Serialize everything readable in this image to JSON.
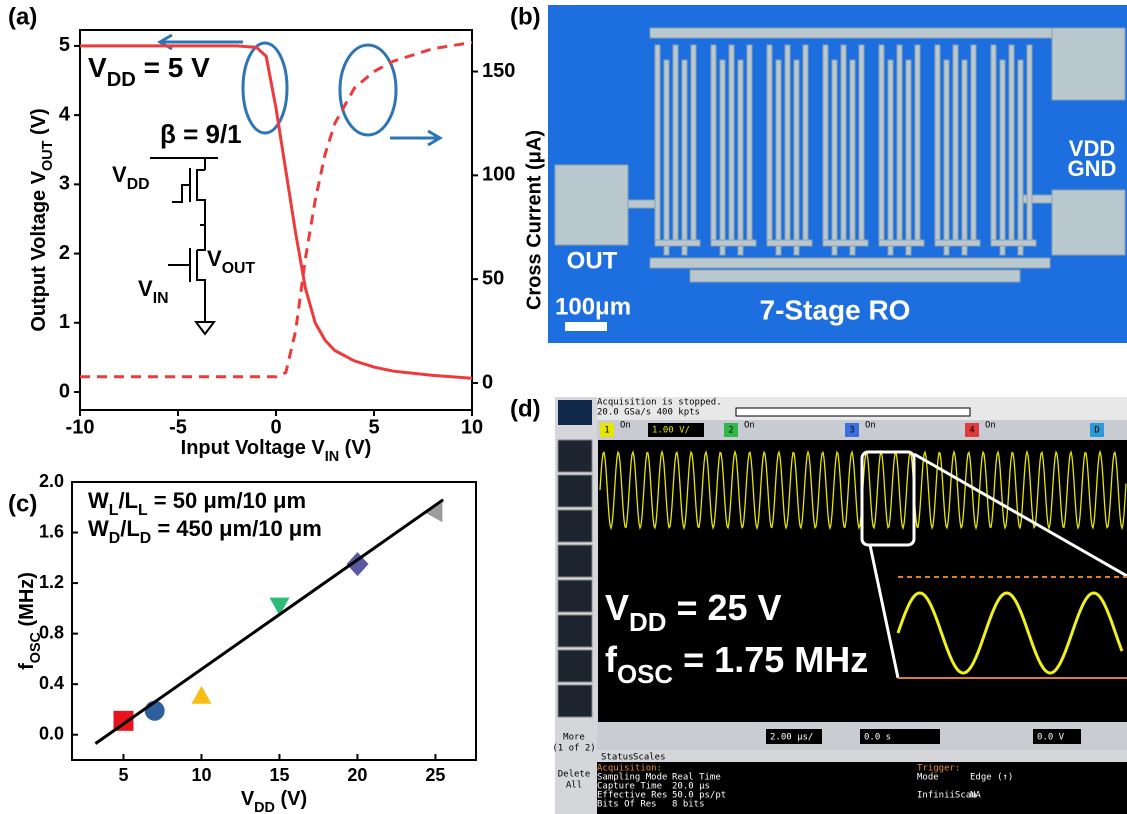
{
  "chart_data": [
    {
      "type": "line",
      "panel_label": "(a)",
      "xlabel": [
        "Input Voltage V",
        "IN",
        " (V)"
      ],
      "ylabel": [
        "Output Voltage V",
        "OUT",
        " (V)"
      ],
      "y2label": "Cross Current (μA)",
      "x": [
        -10,
        -8,
        -6,
        -4,
        -2,
        -1,
        -0.5,
        0,
        0.5,
        1,
        1.5,
        2,
        2.5,
        3,
        4,
        5,
        6,
        8,
        10
      ],
      "series": [
        {
          "color": "#ee3a3a",
          "style": "solid",
          "axis": "y",
          "values": [
            5,
            5,
            5,
            5,
            5,
            4.98,
            4.85,
            4.1,
            3.2,
            2.3,
            1.5,
            1.0,
            0.75,
            0.6,
            0.45,
            0.36,
            0.3,
            0.24,
            0.2
          ]
        },
        {
          "color": "#ee3a3a",
          "style": "dashed",
          "axis": "y2",
          "values": [
            3,
            3,
            3,
            3,
            3,
            3,
            3,
            3,
            5,
            25,
            60,
            88,
            110,
            125,
            142,
            150,
            155,
            161,
            164
          ]
        }
      ],
      "xlim": [
        -10,
        10
      ],
      "xticks": [
        -10,
        -5,
        0,
        5,
        10
      ],
      "ylim": [
        -0.26,
        5.23
      ],
      "yticks": [
        0,
        1,
        2,
        3,
        4,
        5
      ],
      "y2lim": [
        -13,
        170
      ],
      "y2ticks": [
        0,
        50,
        100,
        150
      ],
      "annotations": {
        "vdd": [
          "V",
          "DD",
          " = 5 V"
        ],
        "beta": "β = 9/1",
        "vdd_node": [
          "V",
          "DD"
        ],
        "vout_node": [
          "V",
          "OUT"
        ],
        "vin_node": [
          "V",
          "IN"
        ]
      }
    },
    {
      "type": "scatter",
      "panel_label": "(c)",
      "xlabel": [
        "V",
        "DD",
        " (V)"
      ],
      "ylabel": [
        "f",
        "OSC",
        " (MHz)"
      ],
      "series": [
        {
          "x": [
            5,
            7,
            10,
            15,
            20,
            25
          ],
          "values": [
            0.11,
            0.19,
            0.3,
            1.03,
            1.35,
            1.76
          ],
          "colors": [
            "#e8141c",
            "#2e5f9e",
            "#f7bd16",
            "#2dbb7a",
            "#5b57a0",
            "#9c9c9c"
          ],
          "markers": [
            "square",
            "circle",
            "triangle-up",
            "triangle-down",
            "diamond",
            "triangle-left"
          ]
        },
        {
          "x": [
            3.2,
            25.5
          ],
          "values": [
            -0.07,
            1.86
          ],
          "color": "#000000",
          "style": "line"
        }
      ],
      "xlim": [
        1.7,
        27.6
      ],
      "xticks": [
        5,
        10,
        15,
        20,
        25
      ],
      "ylim": [
        -0.2,
        2.0
      ],
      "yticks": [
        {
          "value": 0,
          "label": "0.0"
        },
        0.4,
        0.8,
        1.2,
        1.6,
        {
          "value": 2,
          "label": "2.0"
        }
      ],
      "annotations": {
        "line1": [
          "W",
          "L",
          "/L",
          "L",
          " = 50 μm/10 μm"
        ],
        "line2": [
          "W",
          "D",
          "/L",
          "D",
          " = 450 μm/10 μm"
        ]
      }
    }
  ],
  "micrograph": {
    "panel_label": "(b)",
    "vdd": "VDD",
    "gnd": "GND",
    "out": "OUT",
    "scale_bar": "100μm",
    "caption": "7-Stage RO"
  },
  "oscilloscope": {
    "panel_label": "(d)",
    "status": "Acquisition is stopped.",
    "rate": "20.0 GSa/s  400 kpts",
    "channels": [
      {
        "num": "1",
        "state": "On",
        "scale": "1.00 V/"
      },
      {
        "num": "2",
        "state": "On"
      },
      {
        "num": "3",
        "state": "On"
      },
      {
        "num": "4",
        "state": "On"
      },
      {
        "num": "D"
      }
    ],
    "vdd": [
      "V",
      "DD",
      " = 25 V"
    ],
    "fosc": [
      "f",
      "OSC",
      " = 1.75 MHz"
    ],
    "timebase": "2.00 μs/",
    "delay": "0.0 s",
    "trigger_level": "0.0 V",
    "more": [
      "More",
      "(1 of 2)"
    ],
    "delete": [
      "Delete",
      "All"
    ],
    "tabs": [
      "Status",
      "Scales"
    ],
    "acquisition": {
      "title": "Acquisition:",
      "rows": [
        [
          "Sampling Mode",
          "Real Time"
        ],
        [
          "Capture Time",
          "20.0 μs"
        ],
        [
          "Effective Res",
          "50.0 ps/pt"
        ],
        [
          "Bits Of Res",
          "8 bits"
        ]
      ]
    },
    "trigger": {
      "title": "Trigger:",
      "rows": [
        [
          "Mode",
          "Edge (↑)"
        ],
        [
          "InfiniiScan",
          "NA"
        ]
      ]
    }
  }
}
